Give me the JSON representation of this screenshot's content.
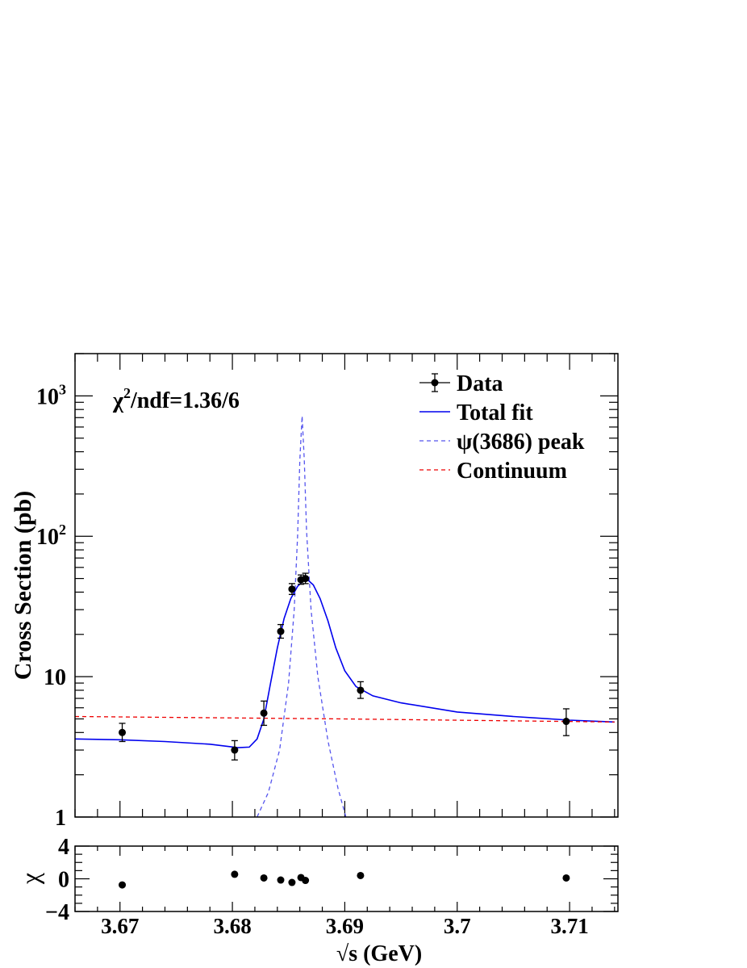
{
  "chart_data": [
    {
      "type": "scatter",
      "log_y": true,
      "xlim": [
        3.666,
        3.7143
      ],
      "ylim": [
        1,
        2000
      ],
      "ylabel": "Cross Section (pb)",
      "y_ticks": [
        {
          "value": 1,
          "label": "1"
        },
        {
          "value": 10,
          "label": "10"
        },
        {
          "value": 100,
          "label": "10",
          "exp": "2"
        },
        {
          "value": 1000,
          "label": "10",
          "exp": "3"
        }
      ],
      "annotation": {
        "prefix": "χ",
        "exp": "2",
        "suffix": "/ndf=1.36/6"
      },
      "legend": {
        "position": "top-right",
        "entries": [
          {
            "label": "Data",
            "style": "marker",
            "color": "#000000"
          },
          {
            "label": "Total fit",
            "style": "solid",
            "color": "#0000ee"
          },
          {
            "label": "ψ(3686) peak",
            "style": "dashed",
            "color": "#5555ee"
          },
          {
            "label": "Continuum",
            "style": "dashed",
            "color": "#ee0000"
          }
        ]
      },
      "series": [
        {
          "name": "Data",
          "points": [
            {
              "x": 3.6702,
              "y": 4.0,
              "err_up": 0.65,
              "err_down": 0.55
            },
            {
              "x": 3.6802,
              "y": 3.0,
              "err_up": 0.5,
              "err_down": 0.45
            },
            {
              "x": 3.6828,
              "y": 5.5,
              "err_up": 1.2,
              "err_down": 1.0
            },
            {
              "x": 3.6843,
              "y": 21.0,
              "err_up": 2.5,
              "err_down": 2.2
            },
            {
              "x": 3.6853,
              "y": 42.0,
              "err_up": 4.0,
              "err_down": 3.5
            },
            {
              "x": 3.6861,
              "y": 49.0,
              "err_up": 4.0,
              "err_down": 3.5
            },
            {
              "x": 3.6865,
              "y": 50.0,
              "err_up": 4.5,
              "err_down": 4.0
            },
            {
              "x": 3.6914,
              "y": 8.0,
              "err_up": 1.2,
              "err_down": 1.0
            },
            {
              "x": 3.7097,
              "y": 4.8,
              "err_up": 1.1,
              "err_down": 1.0
            }
          ]
        },
        {
          "name": "Total fit",
          "points": [
            [
              3.666,
              3.6
            ],
            [
              3.67,
              3.55
            ],
            [
              3.674,
              3.45
            ],
            [
              3.678,
              3.3
            ],
            [
              3.6805,
              3.12
            ],
            [
              3.6815,
              3.15
            ],
            [
              3.6822,
              3.6
            ],
            [
              3.6828,
              5.0
            ],
            [
              3.6834,
              9.0
            ],
            [
              3.684,
              16.0
            ],
            [
              3.6846,
              26.0
            ],
            [
              3.6852,
              36.0
            ],
            [
              3.6858,
              44.0
            ],
            [
              3.6863,
              48.0
            ],
            [
              3.6867,
              49.0
            ],
            [
              3.6872,
              45.0
            ],
            [
              3.6878,
              36.0
            ],
            [
              3.6885,
              25.0
            ],
            [
              3.6892,
              16.0
            ],
            [
              3.69,
              11.0
            ],
            [
              3.691,
              8.5
            ],
            [
              3.6925,
              7.3
            ],
            [
              3.695,
              6.5
            ],
            [
              3.7,
              5.6
            ],
            [
              3.705,
              5.2
            ],
            [
              3.71,
              4.9
            ],
            [
              3.714,
              4.75
            ]
          ]
        },
        {
          "name": "ψ(3686) peak",
          "points": [
            [
              3.6822,
              1.0
            ],
            [
              3.6832,
              1.5
            ],
            [
              3.6842,
              3.0
            ],
            [
              3.685,
              9.0
            ],
            [
              3.6855,
              30.0
            ],
            [
              3.6858,
              100.0
            ],
            [
              3.686,
              350.0
            ],
            [
              3.6862,
              720.0
            ],
            [
              3.6864,
              350.0
            ],
            [
              3.6866,
              110.0
            ],
            [
              3.687,
              30.0
            ],
            [
              3.6876,
              10.0
            ],
            [
              3.6885,
              3.5
            ],
            [
              3.6894,
              1.6
            ],
            [
              3.6901,
              1.0
            ]
          ]
        },
        {
          "name": "Continuum",
          "points": [
            [
              3.666,
              5.2
            ],
            [
              3.69,
              5.0
            ],
            [
              3.714,
              4.75
            ]
          ]
        }
      ]
    },
    {
      "type": "scatter",
      "xlim": [
        3.666,
        3.7143
      ],
      "ylim": [
        -4,
        4
      ],
      "ylabel": "χ",
      "xlabel_root": "√s",
      "xlabel_rest": " (GeV)",
      "x_tick_labels": [
        {
          "value": 3.67,
          "label": "3.67"
        },
        {
          "value": 3.68,
          "label": "3.68"
        },
        {
          "value": 3.69,
          "label": "3.69"
        },
        {
          "value": 3.7,
          "label": "3.7"
        },
        {
          "value": 3.71,
          "label": "3.71"
        }
      ],
      "y_tick_labels": [
        {
          "value": 4,
          "label": "4"
        },
        {
          "value": 0,
          "label": "0"
        },
        {
          "value": -4,
          "label": "−4"
        }
      ],
      "points": [
        [
          3.6702,
          -0.75
        ],
        [
          3.6802,
          0.55
        ],
        [
          3.6828,
          0.1
        ],
        [
          3.6843,
          -0.15
        ],
        [
          3.6853,
          -0.45
        ],
        [
          3.6861,
          0.15
        ],
        [
          3.6865,
          -0.2
        ],
        [
          3.6914,
          0.4
        ],
        [
          3.7097,
          0.1
        ]
      ]
    }
  ]
}
